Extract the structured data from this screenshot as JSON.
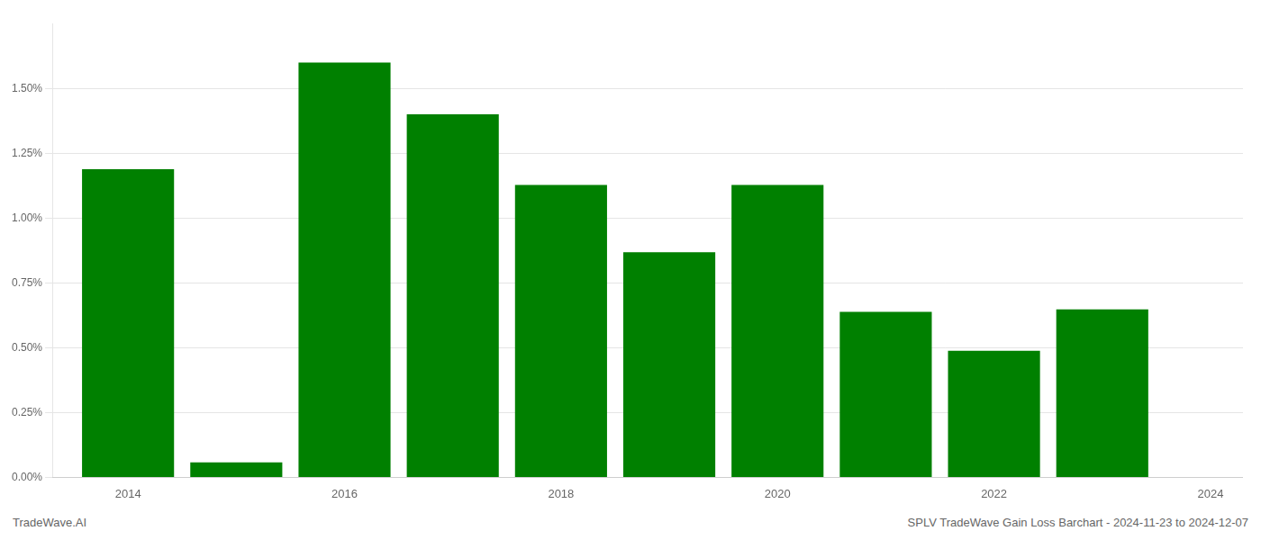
{
  "chart_data": {
    "type": "bar",
    "x": [
      2014,
      2015,
      2016,
      2017,
      2018,
      2019,
      2020,
      2021,
      2022,
      2023
    ],
    "values": [
      0.01188,
      0.00058,
      0.016,
      0.014,
      0.01128,
      0.00868,
      0.01128,
      0.00638,
      0.00488,
      0.00648
    ],
    "color": "#008000",
    "xlim": [
      2013.3,
      2024.3
    ],
    "xticks": [
      2014,
      2016,
      2018,
      2020,
      2022,
      2024
    ],
    "ylim": [
      0,
      0.0175
    ],
    "yticks": [
      {
        "value": 0.0,
        "label": "0.00%"
      },
      {
        "value": 0.0025,
        "label": "0.25%"
      },
      {
        "value": 0.005,
        "label": "0.50%"
      },
      {
        "value": 0.0075,
        "label": "0.75%"
      },
      {
        "value": 0.01,
        "label": "1.00%"
      },
      {
        "value": 0.0125,
        "label": "1.25%"
      },
      {
        "value": 0.015,
        "label": "1.50%"
      }
    ],
    "grid": "y",
    "annotations": [
      "TradeWave.AI",
      "SPLV TradeWave Gain Loss Barchart - 2024-11-23 to 2024-12-07"
    ]
  }
}
